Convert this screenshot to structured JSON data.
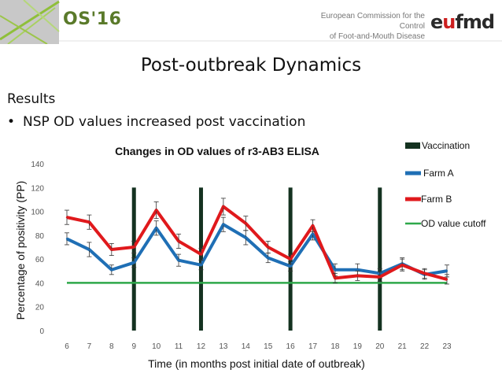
{
  "header": {
    "conference": "OS'16",
    "org_line1": "European Commission for the Control",
    "org_line2": "of Foot-and-Mouth Disease",
    "brand_prefix": "e",
    "brand_accent": "u",
    "brand_suffix": "fmd"
  },
  "slide": {
    "title": "Post-outbreak Dynamics",
    "section": "Results",
    "bullet": "NSP OD values increased post vaccination"
  },
  "chart_data": {
    "type": "line",
    "title": "Changes in OD values of r3-AB3 ELISA",
    "xlabel": "Time (in months post initial date of outbreak)",
    "ylabel": "Percentage of positivity (PP)",
    "x": [
      6,
      7,
      8,
      9,
      10,
      11,
      12,
      13,
      14,
      15,
      16,
      17,
      18,
      19,
      20,
      21,
      22,
      23
    ],
    "ylim": [
      0,
      140
    ],
    "yticks": [
      0,
      20,
      40,
      60,
      80,
      100,
      120,
      140
    ],
    "series": [
      {
        "name": "Farm A",
        "color": "#1f6fb5",
        "values": [
          77,
          68,
          51,
          57,
          86,
          59,
          55,
          89,
          78,
          61,
          54,
          81,
          51,
          51,
          48,
          56,
          47,
          50
        ],
        "error": [
          5,
          6,
          4,
          4,
          6,
          5,
          4,
          6,
          6,
          4,
          4,
          5,
          5,
          5,
          4,
          5,
          4,
          5
        ]
      },
      {
        "name": "Farm B",
        "color": "#e0191c",
        "values": [
          95,
          91,
          68,
          70,
          101,
          75,
          64,
          104,
          90,
          70,
          60,
          88,
          44,
          46,
          45,
          55,
          48,
          43
        ],
        "error": [
          6,
          6,
          5,
          5,
          7,
          6,
          5,
          7,
          6,
          5,
          4,
          5,
          4,
          4,
          4,
          5,
          4,
          4
        ]
      }
    ],
    "cutoff": {
      "name": "OD value cutoff",
      "value": 40,
      "color": "#2ea84a"
    },
    "vaccinations": {
      "name": "Vaccination",
      "x": [
        9,
        12,
        16,
        20
      ],
      "color": "#143220"
    },
    "legend": [
      "Vaccination",
      "Farm A",
      "Farm B",
      "OD value cutoff"
    ],
    "legend_position": "right",
    "grid": false
  }
}
